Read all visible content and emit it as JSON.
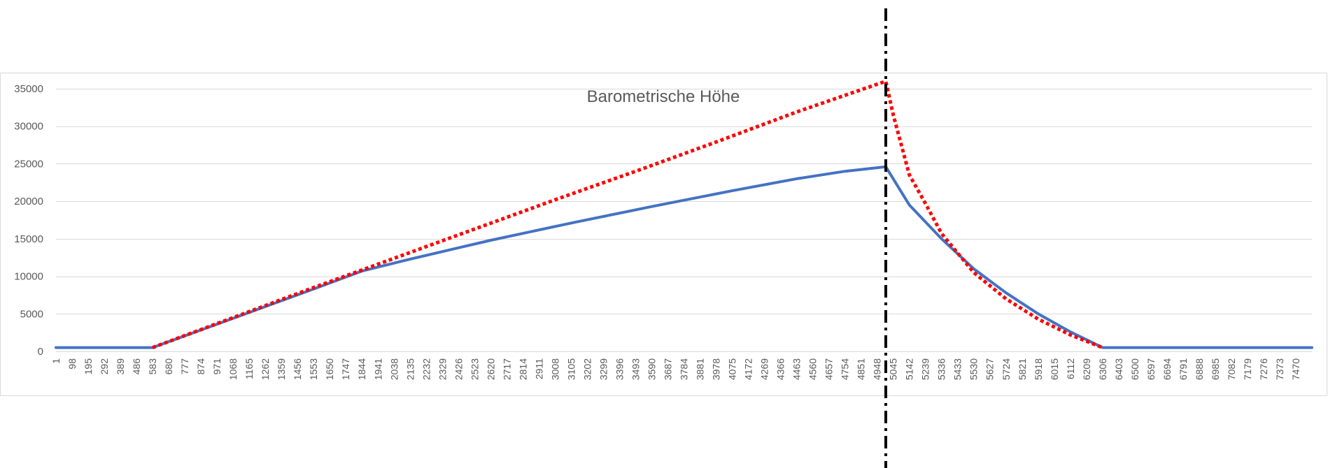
{
  "chart_data": {
    "type": "line",
    "title": "Barometrische Höhe",
    "xlabel": "",
    "ylabel": "",
    "ylim": [
      0,
      35000
    ],
    "yticks": [
      0,
      5000,
      10000,
      15000,
      20000,
      25000,
      30000,
      35000
    ],
    "xlim": [
      1,
      7567
    ],
    "xticks": [
      1,
      98,
      195,
      292,
      389,
      486,
      583,
      680,
      777,
      874,
      971,
      1068,
      1165,
      1262,
      1359,
      1456,
      1553,
      1650,
      1747,
      1844,
      1941,
      2038,
      2135,
      2232,
      2329,
      2426,
      2523,
      2620,
      2717,
      2814,
      2911,
      3008,
      3105,
      3202,
      3299,
      3396,
      3493,
      3590,
      3687,
      3784,
      3881,
      3978,
      4075,
      4172,
      4269,
      4366,
      4463,
      4560,
      4657,
      4754,
      4851,
      4948,
      5045,
      5142,
      5239,
      5336,
      5433,
      5530,
      5627,
      5724,
      5821,
      5918,
      6015,
      6112,
      6209,
      6306,
      6403,
      6500,
      6597,
      6694,
      6791,
      6888,
      6985,
      7082,
      7179,
      7276,
      7373,
      7470
    ],
    "grid": true,
    "legend": "none",
    "series": [
      {
        "color": "#4472C4",
        "style": "solid",
        "points": [
          [
            1,
            500
          ],
          [
            583,
            500
          ],
          [
            1068,
            4400
          ],
          [
            1553,
            8300
          ],
          [
            1844,
            10700
          ],
          [
            2135,
            12300
          ],
          [
            2620,
            14800
          ],
          [
            3105,
            17100
          ],
          [
            3590,
            19300
          ],
          [
            4075,
            21400
          ],
          [
            4463,
            23000
          ],
          [
            4754,
            24000
          ],
          [
            5000,
            24600
          ],
          [
            5142,
            19500
          ],
          [
            5336,
            15000
          ],
          [
            5530,
            11000
          ],
          [
            5724,
            7800
          ],
          [
            5918,
            5000
          ],
          [
            6112,
            2600
          ],
          [
            6306,
            500
          ],
          [
            7567,
            500
          ]
        ]
      },
      {
        "color": "#FF0000",
        "style": "dotted",
        "points": [
          [
            583,
            500
          ],
          [
            1068,
            4500
          ],
          [
            1553,
            8500
          ],
          [
            2038,
            12400
          ],
          [
            2523,
            16300
          ],
          [
            3008,
            20200
          ],
          [
            3493,
            24000
          ],
          [
            3978,
            27900
          ],
          [
            4463,
            31900
          ],
          [
            5000,
            36000
          ],
          [
            5045,
            31500
          ],
          [
            5142,
            23500
          ],
          [
            5239,
            19700
          ],
          [
            5336,
            15700
          ],
          [
            5530,
            10500
          ],
          [
            5724,
            7000
          ],
          [
            5918,
            4300
          ],
          [
            6112,
            2200
          ],
          [
            6306,
            500
          ]
        ]
      }
    ],
    "markers": [
      {
        "type": "vertical-line",
        "x": 5000,
        "color": "#000000",
        "style": "dash-dot"
      }
    ]
  }
}
